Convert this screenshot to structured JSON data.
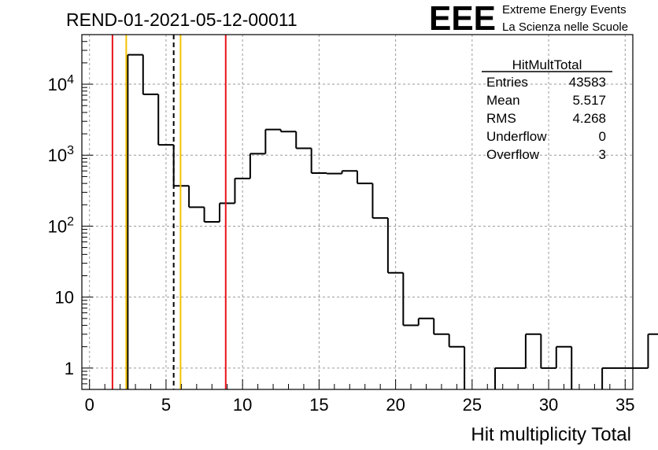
{
  "chart_data": {
    "type": "bar",
    "title": "REND-01-2021-05-12-00011",
    "xlabel": "Hit multiplicity Total",
    "ylabel": "",
    "xlim": [
      -0.5,
      35.5
    ],
    "ylim": [
      0.5,
      50000
    ],
    "yscale": "log",
    "grid": true,
    "bin_width": 1,
    "bin_edges_start": 2.5,
    "values": [
      26000,
      7200,
      1400,
      370,
      185,
      115,
      210,
      470,
      1050,
      2300,
      2150,
      1250,
      560,
      550,
      600,
      400,
      130,
      22,
      4,
      5,
      3,
      2,
      0,
      0,
      1,
      1,
      3,
      1,
      2,
      0,
      0,
      1,
      1,
      1,
      3
    ],
    "x_ticks": [
      0,
      5,
      10,
      15,
      20,
      25,
      30,
      35
    ],
    "x_tick_labels": [
      "0",
      "5",
      "10",
      "15",
      "20",
      "25",
      "30",
      "35"
    ],
    "y_ticks": [
      1,
      10,
      100,
      1000,
      10000
    ],
    "y_tick_labels": [
      {
        "base": "1",
        "exp": ""
      },
      {
        "base": "10",
        "exp": ""
      },
      {
        "base": "10",
        "exp": "2"
      },
      {
        "base": "10",
        "exp": "3"
      },
      {
        "base": "10",
        "exp": "4"
      }
    ],
    "vlines": [
      {
        "x": 1.5,
        "color": "#e8141c",
        "style": "solid"
      },
      {
        "x": 2.4,
        "color": "#f2c200",
        "style": "solid"
      },
      {
        "x": 5.5,
        "color": "#000000",
        "style": "dashed"
      },
      {
        "x": 5.95,
        "color": "#f2c200",
        "style": "solid"
      },
      {
        "x": 8.9,
        "color": "#e8141c",
        "style": "solid"
      }
    ],
    "stats": {
      "title": "HitMultTotal",
      "rows": [
        {
          "label": "Entries",
          "value": "43583"
        },
        {
          "label": "Mean",
          "value": "5.517"
        },
        {
          "label": "RMS",
          "value": "4.268"
        },
        {
          "label": "Underflow",
          "value": "0"
        },
        {
          "label": "Overflow",
          "value": "3"
        }
      ]
    },
    "logo": {
      "text": "EEE",
      "line1": "Extreme Energy Events",
      "line2": "La Scienza nelle Scuole",
      "color": "#1a1aff"
    }
  }
}
